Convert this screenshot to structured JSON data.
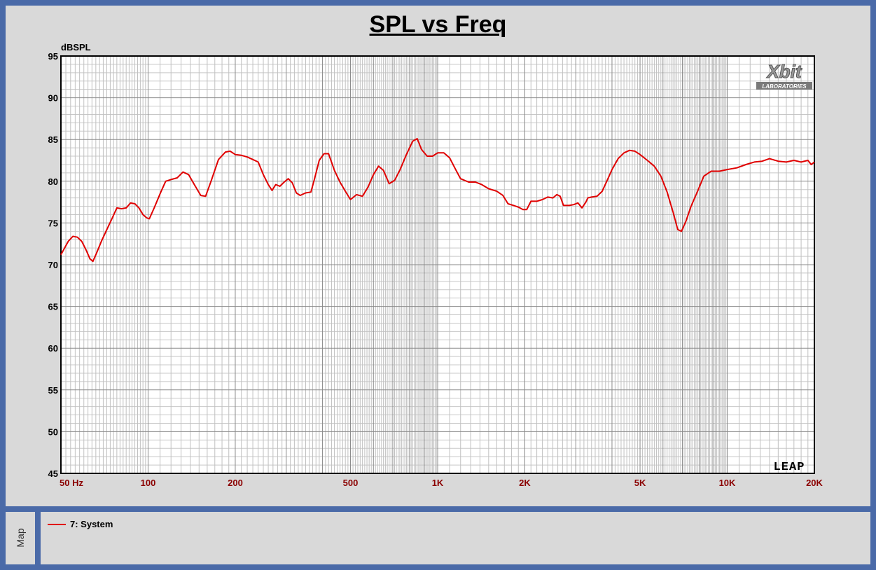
{
  "chart_data": {
    "type": "line",
    "title": "SPL vs Freq",
    "ylabel": "dBSPL",
    "xscale": "log",
    "xlim": [
      50,
      20000
    ],
    "ylim": [
      45,
      95
    ],
    "grid": true,
    "yticks": [
      95,
      90,
      85,
      80,
      75,
      70,
      65,
      60,
      55,
      50,
      45
    ],
    "xticks": [
      {
        "value": 50,
        "label": "50  Hz"
      },
      {
        "value": 100,
        "label": "100"
      },
      {
        "value": 200,
        "label": "200"
      },
      {
        "value": 500,
        "label": "500"
      },
      {
        "value": 1000,
        "label": "1K"
      },
      {
        "value": 2000,
        "label": "2K"
      },
      {
        "value": 5000,
        "label": "5K"
      },
      {
        "value": 10000,
        "label": "10K"
      },
      {
        "value": 20000,
        "label": "20K"
      }
    ],
    "legend_position": "bottom panel",
    "series": [
      {
        "name": "7: System",
        "color": "#e00000",
        "points": [
          [
            50,
            71.2
          ],
          [
            53,
            72.8
          ],
          [
            55,
            73.4
          ],
          [
            57,
            73.3
          ],
          [
            59,
            72.8
          ],
          [
            61,
            71.8
          ],
          [
            63,
            70.7
          ],
          [
            64.5,
            70.4
          ],
          [
            66,
            71.2
          ],
          [
            69,
            72.8
          ],
          [
            72,
            74.2
          ],
          [
            75,
            75.5
          ],
          [
            78,
            76.8
          ],
          [
            81,
            76.7
          ],
          [
            84,
            76.8
          ],
          [
            87,
            77.4
          ],
          [
            90,
            77.3
          ],
          [
            93,
            76.8
          ],
          [
            96,
            76.0
          ],
          [
            99,
            75.6
          ],
          [
            101,
            75.5
          ],
          [
            105,
            76.8
          ],
          [
            110,
            78.5
          ],
          [
            115,
            80.0
          ],
          [
            120,
            80.2
          ],
          [
            126,
            80.4
          ],
          [
            132,
            81.1
          ],
          [
            138,
            80.8
          ],
          [
            145,
            79.5
          ],
          [
            152,
            78.3
          ],
          [
            158,
            78.2
          ],
          [
            165,
            80.0
          ],
          [
            175,
            82.6
          ],
          [
            185,
            83.5
          ],
          [
            192,
            83.6
          ],
          [
            200,
            83.2
          ],
          [
            210,
            83.1
          ],
          [
            220,
            82.9
          ],
          [
            230,
            82.6
          ],
          [
            240,
            82.3
          ],
          [
            250,
            80.8
          ],
          [
            260,
            79.6
          ],
          [
            268,
            78.9
          ],
          [
            276,
            79.6
          ],
          [
            285,
            79.4
          ],
          [
            295,
            79.9
          ],
          [
            305,
            80.3
          ],
          [
            315,
            79.8
          ],
          [
            325,
            78.6
          ],
          [
            335,
            78.3
          ],
          [
            350,
            78.6
          ],
          [
            365,
            78.7
          ],
          [
            375,
            80.2
          ],
          [
            390,
            82.5
          ],
          [
            405,
            83.3
          ],
          [
            420,
            83.3
          ],
          [
            440,
            81.3
          ],
          [
            460,
            79.9
          ],
          [
            480,
            78.8
          ],
          [
            500,
            77.8
          ],
          [
            525,
            78.4
          ],
          [
            550,
            78.2
          ],
          [
            575,
            79.3
          ],
          [
            600,
            80.8
          ],
          [
            625,
            81.8
          ],
          [
            650,
            81.3
          ],
          [
            680,
            79.7
          ],
          [
            710,
            80.1
          ],
          [
            740,
            81.3
          ],
          [
            780,
            83.2
          ],
          [
            820,
            84.8
          ],
          [
            850,
            85.1
          ],
          [
            880,
            83.8
          ],
          [
            920,
            83.0
          ],
          [
            960,
            83.0
          ],
          [
            1000,
            83.4
          ],
          [
            1050,
            83.4
          ],
          [
            1100,
            82.8
          ],
          [
            1150,
            81.5
          ],
          [
            1200,
            80.3
          ],
          [
            1280,
            79.9
          ],
          [
            1350,
            79.9
          ],
          [
            1420,
            79.6
          ],
          [
            1500,
            79.1
          ],
          [
            1600,
            78.8
          ],
          [
            1680,
            78.3
          ],
          [
            1750,
            77.3
          ],
          [
            1830,
            77.1
          ],
          [
            1900,
            76.9
          ],
          [
            1970,
            76.6
          ],
          [
            2030,
            76.6
          ],
          [
            2100,
            77.6
          ],
          [
            2200,
            77.6
          ],
          [
            2300,
            77.8
          ],
          [
            2400,
            78.1
          ],
          [
            2500,
            78.0
          ],
          [
            2580,
            78.4
          ],
          [
            2650,
            78.2
          ],
          [
            2720,
            77.1
          ],
          [
            2850,
            77.1
          ],
          [
            2950,
            77.2
          ],
          [
            3050,
            77.4
          ],
          [
            3150,
            76.8
          ],
          [
            3250,
            77.5
          ],
          [
            3300,
            78.0
          ],
          [
            3400,
            78.1
          ],
          [
            3550,
            78.2
          ],
          [
            3700,
            78.8
          ],
          [
            3850,
            80.1
          ],
          [
            4000,
            81.4
          ],
          [
            4200,
            82.7
          ],
          [
            4400,
            83.4
          ],
          [
            4600,
            83.7
          ],
          [
            4800,
            83.6
          ],
          [
            5000,
            83.2
          ],
          [
            5300,
            82.5
          ],
          [
            5600,
            81.8
          ],
          [
            5900,
            80.6
          ],
          [
            6200,
            78.7
          ],
          [
            6500,
            76.3
          ],
          [
            6750,
            74.2
          ],
          [
            6950,
            74.0
          ],
          [
            7200,
            75.2
          ],
          [
            7500,
            77.0
          ],
          [
            7900,
            78.8
          ],
          [
            8300,
            80.6
          ],
          [
            8800,
            81.2
          ],
          [
            9400,
            81.2
          ],
          [
            10000,
            81.4
          ],
          [
            10800,
            81.6
          ],
          [
            11600,
            82.0
          ],
          [
            12400,
            82.3
          ],
          [
            13200,
            82.4
          ],
          [
            14000,
            82.7
          ],
          [
            15000,
            82.4
          ],
          [
            16000,
            82.3
          ],
          [
            17000,
            82.5
          ],
          [
            18000,
            82.3
          ],
          [
            19000,
            82.5
          ],
          [
            19500,
            82.0
          ],
          [
            20000,
            82.3
          ]
        ]
      }
    ]
  },
  "map_tab_label": "Map",
  "legend": {
    "entries": [
      {
        "label": "7: System",
        "color": "#e00000"
      }
    ]
  },
  "logos": {
    "top_right": "X-bit LABORATORIES",
    "bottom_right": "LEAP"
  }
}
